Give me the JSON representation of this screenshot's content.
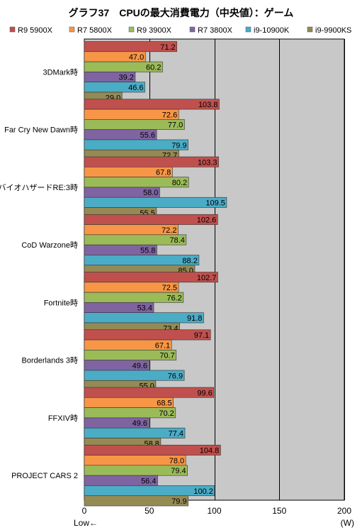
{
  "chart_data": {
    "type": "bar",
    "orientation": "horizontal",
    "title": "グラフ37　CPUの最大消費電力（中央値）：ゲーム",
    "categories": [
      "3DMark時",
      "Far Cry New Dawn時",
      "バイオハザードRE:3時",
      "CoD Warzone時",
      "Fortnite時",
      "Borderlands 3時",
      "FFXIV時",
      "PROJECT CARS 2"
    ],
    "series": [
      {
        "name": "R9 5900X",
        "color": "#c0504d",
        "values": [
          71.2,
          103.8,
          103.3,
          102.6,
          102.7,
          97.1,
          99.6,
          104.8
        ]
      },
      {
        "name": "R7 5800X",
        "color": "#f79646",
        "values": [
          47.0,
          72.6,
          67.8,
          72.2,
          72.5,
          67.1,
          68.5,
          78.0
        ]
      },
      {
        "name": "R9 3900X",
        "color": "#9bbb59",
        "values": [
          60.2,
          77.0,
          80.2,
          78.4,
          76.2,
          70.7,
          70.2,
          79.4
        ]
      },
      {
        "name": "R7 3800X",
        "color": "#8064a2",
        "values": [
          39.2,
          55.6,
          58.0,
          55.8,
          53.4,
          49.6,
          49.6,
          56.4
        ]
      },
      {
        "name": "i9-10900K",
        "color": "#4bacc6",
        "values": [
          46.6,
          79.9,
          109.5,
          88.2,
          91.8,
          76.9,
          77.4,
          100.2
        ]
      },
      {
        "name": "i9-9900KS",
        "color": "#948a54",
        "values": [
          29.0,
          72.7,
          55.5,
          85.0,
          73.4,
          55.0,
          58.8,
          79.9
        ]
      }
    ],
    "value_labels": [
      [
        "71.2",
        "103.8",
        "103.3",
        "102.6",
        "102.7",
        "97.1",
        "99.6",
        "104.8"
      ],
      [
        "47.0",
        "72.6",
        "67.8",
        "72.2",
        "72.5",
        "67.1",
        "68.5",
        "78.0"
      ],
      [
        "60.2",
        "77.0",
        "80.2",
        "78.4",
        "76.2",
        "70.7",
        "70.2",
        "79.4"
      ],
      [
        "39.2",
        "55.6",
        "58.0",
        "55.8",
        "53.4",
        "49.6",
        "49.6",
        "56.4"
      ],
      [
        "46.6",
        "79.9",
        "109.5",
        "88.2",
        "91.8",
        "76.9",
        "77.4",
        "100.2"
      ],
      [
        "29.0",
        "72.7",
        "55.5",
        "85.0",
        "73.4",
        "55.0",
        "58.8",
        "79.9"
      ]
    ],
    "xlim": [
      0,
      200
    ],
    "xticks": [
      "0",
      "50",
      "100",
      "150",
      "200"
    ],
    "xtick_values": [
      0,
      50,
      100,
      150,
      200
    ],
    "unit_label": "(W)",
    "direction_label": "Low←",
    "grid": true,
    "plot_background": "#c8c8c8",
    "legend_position": "top"
  }
}
